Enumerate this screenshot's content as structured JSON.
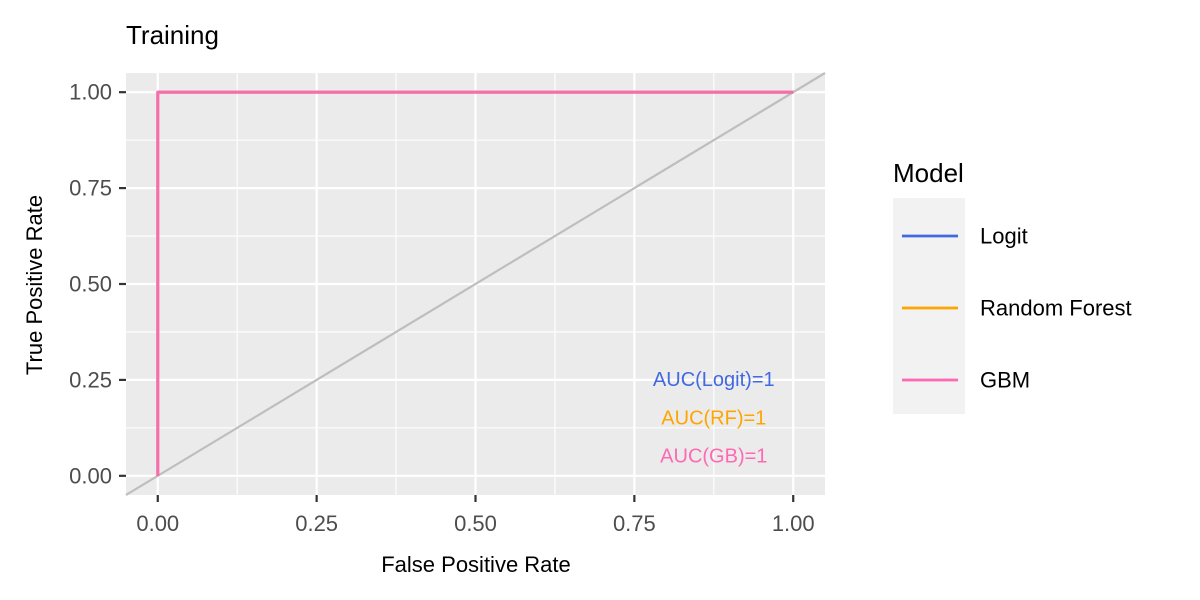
{
  "chart_data": {
    "type": "line",
    "title": "Training",
    "xlabel": "False Positive Rate",
    "ylabel": "True Positive Rate",
    "xlim": [
      -0.05,
      1.05
    ],
    "ylim": [
      -0.05,
      1.05
    ],
    "xticks": [
      0,
      0.25,
      0.5,
      0.75,
      1
    ],
    "xtick_labels": [
      "0.00",
      "0.25",
      "0.50",
      "0.75",
      "1.00"
    ],
    "yticks": [
      0,
      0.25,
      0.5,
      0.75,
      1
    ],
    "ytick_labels": [
      "0.00",
      "0.25",
      "0.50",
      "0.75",
      "1.00"
    ],
    "grid": true,
    "legend": {
      "title": "Model",
      "position": "right"
    },
    "reference_line": {
      "x": [
        -0.05,
        1.05
      ],
      "y": [
        -0.05,
        1.05
      ],
      "color": "#bebebe"
    },
    "series": [
      {
        "name": "Logit",
        "color": "#4169e1",
        "x": [
          0,
          0,
          1
        ],
        "y": [
          0,
          1,
          1
        ]
      },
      {
        "name": "Random Forest",
        "color": "#ffa500",
        "x": [
          0,
          0,
          1
        ],
        "y": [
          0,
          1,
          1
        ]
      },
      {
        "name": "GBM",
        "color": "#ff69b4",
        "x": [
          0,
          0,
          1
        ],
        "y": [
          0,
          1,
          1
        ]
      }
    ],
    "annotations": [
      {
        "text": "AUC(Logit)=1",
        "x": 0.875,
        "y": 0.25,
        "color": "#4169e1"
      },
      {
        "text": "AUC(RF)=1",
        "x": 0.875,
        "y": 0.15,
        "color": "#ffa500"
      },
      {
        "text": "AUC(GB)=1",
        "x": 0.875,
        "y": 0.05,
        "color": "#ff69b4"
      }
    ]
  }
}
